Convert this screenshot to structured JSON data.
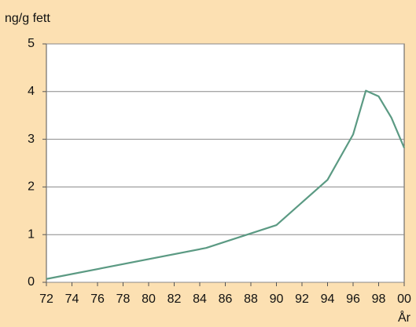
{
  "chart_data": {
    "type": "line",
    "ylabel": "ng/g fett",
    "xlabel": "År",
    "x": [
      72,
      84.5,
      90,
      94,
      96,
      97,
      98,
      99,
      100
    ],
    "series": [
      {
        "color": "#5b9a83",
        "values": [
          0.07,
          0.72,
          1.2,
          2.15,
          3.1,
          4.02,
          3.9,
          3.45,
          2.82
        ]
      }
    ],
    "xlim": [
      72,
      100
    ],
    "xticks": [
      72,
      74,
      76,
      78,
      80,
      82,
      84,
      86,
      88,
      90,
      92,
      94,
      96,
      98,
      {
        "value": 100,
        "label": "00"
      }
    ],
    "ylim": [
      0,
      5
    ],
    "yticks": [
      0,
      1,
      2,
      3,
      4,
      5
    ],
    "grid": true
  }
}
